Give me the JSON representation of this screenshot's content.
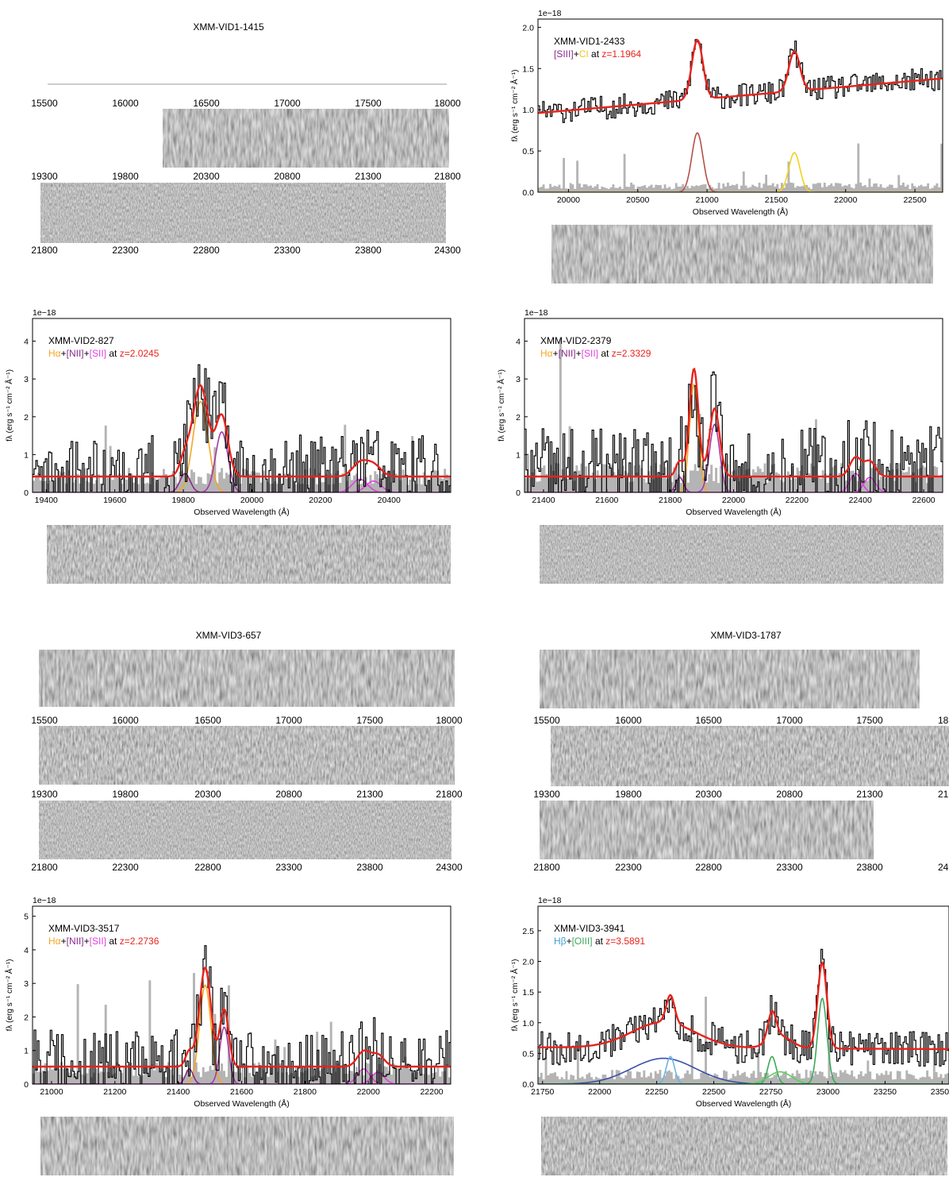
{
  "chart_data": [
    {
      "type": "line",
      "id": "vid1-1415",
      "title": "XMM-VID1-1415",
      "rows": [
        {
          "ticks": [
            "15500",
            "16000",
            "16500",
            "17000",
            "17500",
            "18000"
          ]
        },
        {
          "ticks": [
            "19300",
            "19800",
            "20300",
            "20800",
            "21300",
            "21800"
          ]
        },
        {
          "ticks": [
            "21800",
            "22300",
            "22800",
            "23300",
            "23800",
            "24300"
          ]
        }
      ]
    },
    {
      "type": "line",
      "id": "vid1-2433",
      "name": "XMM-VID1-2433",
      "lines_label": [
        "[SIII]",
        "+",
        "CI",
        " at ",
        "z=1.1964"
      ],
      "exponent": "1e−18",
      "xlabel": "Observed Wavelength (Å)",
      "ylabel": "fλ (erg s⁻¹ cm⁻² Å⁻¹)",
      "xlim": [
        19780,
        22700
      ],
      "ylim": [
        0,
        2.1
      ],
      "xticks": [
        20000,
        20500,
        21000,
        21500,
        22000,
        22500
      ],
      "yticks": [
        "0.0",
        "0.5",
        "1.0",
        "1.5",
        "2.0"
      ],
      "continuum": [
        0.96,
        1.38
      ],
      "lines": [
        {
          "center": 20930,
          "amp": 0.72,
          "sigma": 40,
          "color": "#b5504a"
        },
        {
          "center": 21630,
          "amp": 0.48,
          "sigma": 40,
          "color": "#f2d21b"
        }
      ],
      "noise_level": 0.09
    },
    {
      "type": "line",
      "id": "vid2-827",
      "name": "XMM-VID2-827",
      "lines_label": [
        "Hα",
        "+",
        "[NII]",
        "+",
        "[SII]",
        " at ",
        "z=2.0245"
      ],
      "exponent": "1e−18",
      "xlabel": "Observed Wavelength (Å)",
      "ylabel": "fλ (erg s⁻¹ cm⁻² Å⁻¹)",
      "xlim": [
        19360,
        20580
      ],
      "ylim": [
        0,
        4.6
      ],
      "xticks": [
        19400,
        19600,
        19800,
        20000,
        20200,
        20400
      ],
      "yticks": [
        "0",
        "1",
        "2",
        "3",
        "4"
      ],
      "continuum": [
        0.42,
        0.42
      ],
      "lines": [
        {
          "center": 19850,
          "amp": 2.4,
          "sigma": 22,
          "color": "#f5a623"
        },
        {
          "center": 19805,
          "amp": 0.5,
          "sigma": 15,
          "color": "#8b2a8b"
        },
        {
          "center": 19912,
          "amp": 1.6,
          "sigma": 18,
          "color": "#a63aa6"
        },
        {
          "center": 20315,
          "amp": 0.35,
          "sigma": 22,
          "color": "#e040e0"
        },
        {
          "center": 20355,
          "amp": 0.3,
          "sigma": 22,
          "color": "#e040e0"
        }
      ],
      "noise_level": 0.5
    },
    {
      "type": "line",
      "id": "vid2-2379",
      "name": "XMM-VID2-2379",
      "lines_label": [
        "Hα",
        "+",
        "[NII]",
        "+",
        "[SII]",
        " at ",
        "z=2.3329"
      ],
      "exponent": "1e−18",
      "xlabel": "Observed Wavelength (Å)",
      "ylabel": "fλ (erg s⁻¹ cm⁻² Å⁻¹)",
      "xlim": [
        21340,
        22660
      ],
      "ylim": [
        0,
        4.6
      ],
      "xticks": [
        21400,
        21600,
        21800,
        22000,
        22200,
        22400,
        22600
      ],
      "yticks": [
        "0",
        "1",
        "2",
        "3",
        "4"
      ],
      "continuum": [
        0.42,
        0.42
      ],
      "lines": [
        {
          "center": 21875,
          "amp": 2.85,
          "sigma": 14,
          "color": "#f5a623"
        },
        {
          "center": 21830,
          "amp": 0.4,
          "sigma": 12,
          "color": "#8b2a8b"
        },
        {
          "center": 21940,
          "amp": 1.8,
          "sigma": 16,
          "color": "#a63aa6"
        },
        {
          "center": 22385,
          "amp": 0.5,
          "sigma": 18,
          "color": "#e040e0"
        },
        {
          "center": 22430,
          "amp": 0.4,
          "sigma": 18,
          "color": "#e040e0"
        }
      ],
      "noise_level": 0.6
    },
    {
      "type": "line",
      "id": "vid3-657",
      "title": "XMM-VID3-657",
      "rows": [
        {
          "ticks": [
            "15500",
            "16000",
            "16500",
            "17000",
            "17500",
            "18000"
          ]
        },
        {
          "ticks": [
            "19300",
            "19800",
            "20300",
            "20800",
            "21300",
            "21800"
          ]
        },
        {
          "ticks": [
            "21800",
            "22300",
            "22800",
            "23300",
            "23800",
            "24300"
          ]
        }
      ]
    },
    {
      "type": "line",
      "id": "vid3-1787",
      "title": "XMM-VID3-1787",
      "rows": [
        {
          "ticks": [
            "15500",
            "16000",
            "16500",
            "17000",
            "17500",
            "18"
          ]
        },
        {
          "ticks": [
            "19300",
            "19800",
            "20300",
            "20800",
            "21300",
            "21"
          ]
        },
        {
          "ticks": [
            "21800",
            "22300",
            "22800",
            "23300",
            "23800",
            "24"
          ]
        }
      ]
    },
    {
      "type": "line",
      "id": "vid3-3517",
      "name": "XMM-VID3-3517",
      "lines_label": [
        "Hα",
        "+",
        "[NII]",
        "+",
        "[SII]",
        " at ",
        "z=2.2736"
      ],
      "exponent": "1e−18",
      "xlabel": "Observed Wavelength (Å)",
      "ylabel": "fλ (erg s⁻¹ cm⁻² Å⁻¹)",
      "xlim": [
        20940,
        22260
      ],
      "ylim": [
        0,
        5.3
      ],
      "xticks": [
        21000,
        21200,
        21400,
        21600,
        21800,
        22000,
        22200
      ],
      "yticks": [
        "0",
        "1",
        "2",
        "3",
        "4",
        "5"
      ],
      "continuum": [
        0.52,
        0.52
      ],
      "lines": [
        {
          "center": 21485,
          "amp": 2.95,
          "sigma": 18,
          "color": "#f5a623"
        },
        {
          "center": 21435,
          "amp": 0.45,
          "sigma": 12,
          "color": "#8b2a8b"
        },
        {
          "center": 21545,
          "amp": 1.7,
          "sigma": 14,
          "color": "#a63aa6"
        },
        {
          "center": 21985,
          "amp": 0.45,
          "sigma": 20,
          "color": "#e040e0"
        },
        {
          "center": 22030,
          "amp": 0.35,
          "sigma": 20,
          "color": "#e040e0"
        }
      ],
      "noise_level": 0.5
    },
    {
      "type": "line",
      "id": "vid3-3941",
      "name": "XMM-VID3-3941",
      "lines_label": [
        "Hβ",
        "+",
        "[OIII]",
        " at ",
        "z=3.5891"
      ],
      "exponent": "1e−18",
      "xlabel": "Observed Wavelength (Å)",
      "ylabel": "fλ (erg s⁻¹ cm⁻² Å⁻¹)",
      "xlim": [
        21730,
        23530
      ],
      "ylim": [
        0,
        2.9
      ],
      "xticks": [
        "21750",
        "22000",
        "22250",
        "22500",
        "22750",
        "23000",
        "23250",
        "23500"
      ],
      "yticks": [
        "0.0",
        "0.5",
        "1.0",
        "1.5",
        "2.0",
        "2.5"
      ],
      "continuum": [
        0.6,
        0.57
      ],
      "lines": [
        {
          "center": 22280,
          "amp": 0.42,
          "sigma": 140,
          "color": "#3a4fa6"
        },
        {
          "center": 22310,
          "amp": 0.45,
          "sigma": 18,
          "color": "#6cb4e4"
        },
        {
          "center": 22755,
          "amp": 0.45,
          "sigma": 18,
          "color": "#3da85a"
        },
        {
          "center": 22790,
          "amp": 0.2,
          "sigma": 50,
          "color": "#5ccc5c"
        },
        {
          "center": 22975,
          "amp": 1.4,
          "sigma": 20,
          "color": "#3da85a"
        }
      ],
      "noise_level": 0.18
    }
  ]
}
